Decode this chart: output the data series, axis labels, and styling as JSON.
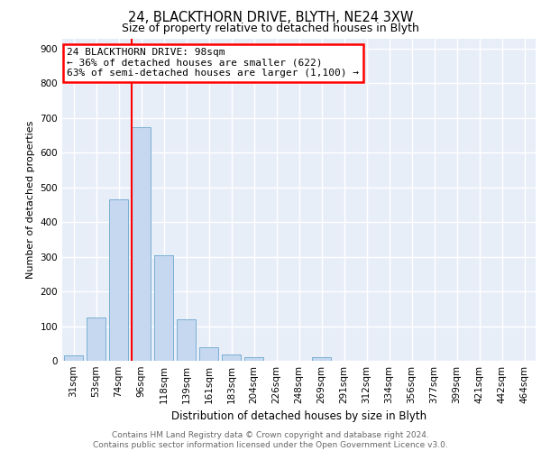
{
  "title1": "24, BLACKTHORN DRIVE, BLYTH, NE24 3XW",
  "title2": "Size of property relative to detached houses in Blyth",
  "xlabel": "Distribution of detached houses by size in Blyth",
  "ylabel": "Number of detached properties",
  "bar_labels": [
    "31sqm",
    "53sqm",
    "74sqm",
    "96sqm",
    "118sqm",
    "139sqm",
    "161sqm",
    "183sqm",
    "204sqm",
    "226sqm",
    "248sqm",
    "269sqm",
    "291sqm",
    "312sqm",
    "334sqm",
    "356sqm",
    "377sqm",
    "399sqm",
    "421sqm",
    "442sqm",
    "464sqm"
  ],
  "bar_values": [
    15,
    125,
    465,
    675,
    305,
    120,
    38,
    18,
    10,
    0,
    0,
    10,
    0,
    0,
    0,
    0,
    0,
    0,
    0,
    0,
    0
  ],
  "bar_color": "#c5d8f0",
  "bar_edge_color": "#7aafd4",
  "vline_index": 3,
  "vline_color": "red",
  "annotation_title": "24 BLACKTHORN DRIVE: 98sqm",
  "annotation_line1": "← 36% of detached houses are smaller (622)",
  "annotation_line2": "63% of semi-detached houses are larger (1,100) →",
  "ylim": [
    0,
    930
  ],
  "yticks": [
    0,
    100,
    200,
    300,
    400,
    500,
    600,
    700,
    800,
    900
  ],
  "footer": "Contains HM Land Registry data © Crown copyright and database right 2024.\nContains public sector information licensed under the Open Government Licence v3.0.",
  "plot_bg_color": "#e8eef8",
  "title1_fontsize": 10.5,
  "title2_fontsize": 9,
  "ylabel_fontsize": 8,
  "xlabel_fontsize": 8.5,
  "tick_fontsize": 7.5,
  "footer_fontsize": 6.5,
  "ann_fontsize": 8
}
